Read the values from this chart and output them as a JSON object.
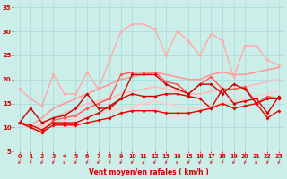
{
  "bg_color": "#cceee8",
  "grid_color": "#aadddd",
  "xlabel": "Vent moyen/en rafales ( km/h )",
  "xlabel_color": "#cc0000",
  "tick_color": "#cc0000",
  "xlim": [
    -0.5,
    23.5
  ],
  "ylim": [
    5,
    36
  ],
  "xticks": [
    0,
    1,
    2,
    3,
    4,
    5,
    6,
    7,
    8,
    9,
    10,
    11,
    12,
    13,
    14,
    15,
    16,
    17,
    18,
    19,
    20,
    21,
    22,
    23
  ],
  "yticks": [
    5,
    10,
    15,
    20,
    25,
    30,
    35
  ],
  "series": [
    {
      "x": [
        0,
        1,
        2,
        3,
        4,
        5,
        6,
        7,
        8,
        9,
        10,
        11,
        12,
        13,
        14,
        15,
        16,
        17,
        18,
        19,
        20,
        21,
        22,
        23
      ],
      "y": [
        18,
        16,
        14.5,
        21,
        17,
        17,
        21.5,
        18,
        24,
        30,
        31.5,
        31.5,
        30.5,
        25,
        30,
        28,
        25,
        29.5,
        28,
        20.5,
        27,
        27,
        24,
        23
      ],
      "color": "#ffaaaa",
      "lw": 1.0,
      "marker": "D",
      "ms": 2.0,
      "zorder": 2
    },
    {
      "x": [
        0,
        1,
        2,
        3,
        4,
        5,
        6,
        7,
        8,
        9,
        10,
        11,
        12,
        13,
        14,
        15,
        16,
        17,
        18,
        19,
        20,
        21,
        22,
        23
      ],
      "y": [
        11,
        10.5,
        12,
        14,
        15,
        16,
        17,
        18,
        19,
        20,
        20.5,
        21,
        21.5,
        21,
        20.5,
        20,
        20,
        21,
        21.5,
        21,
        21,
        21.5,
        22,
        22.5
      ],
      "color": "#ff9999",
      "lw": 1.2,
      "marker": null,
      "ms": 0,
      "zorder": 2
    },
    {
      "x": [
        0,
        1,
        2,
        3,
        4,
        5,
        6,
        7,
        8,
        9,
        10,
        11,
        12,
        13,
        14,
        15,
        16,
        17,
        18,
        19,
        20,
        21,
        22,
        23
      ],
      "y": [
        11,
        10,
        10.5,
        12,
        13,
        14,
        15,
        15.5,
        16,
        17,
        17.5,
        18,
        18.5,
        18,
        17.5,
        17,
        17,
        17.5,
        18,
        18,
        18.5,
        19,
        19.5,
        20
      ],
      "color": "#ffbbbb",
      "lw": 1.2,
      "marker": null,
      "ms": 0,
      "zorder": 2
    },
    {
      "x": [
        0,
        1,
        2,
        3,
        4,
        5,
        6,
        7,
        8,
        9,
        10,
        11,
        12,
        13,
        14,
        15,
        16,
        17,
        18,
        19,
        20,
        21,
        22,
        23
      ],
      "y": [
        11,
        10,
        10,
        11,
        11.5,
        12,
        12.5,
        13,
        13.5,
        14,
        14.5,
        15,
        15.5,
        15,
        14.5,
        14,
        14,
        14.5,
        15,
        15.5,
        16,
        16.5,
        17,
        17.5
      ],
      "color": "#ffcccc",
      "lw": 1.2,
      "marker": null,
      "ms": 0,
      "zorder": 2
    },
    {
      "x": [
        0,
        1,
        2,
        3,
        4,
        5,
        6,
        7,
        8,
        9,
        10,
        11,
        12,
        13,
        14,
        15,
        16,
        17,
        18,
        19,
        20,
        21,
        22,
        23
      ],
      "y": [
        11,
        10,
        9,
        11.5,
        12,
        12.5,
        14,
        15,
        16,
        21,
        21.5,
        21.5,
        21.5,
        19.5,
        19,
        17,
        19,
        20.5,
        18,
        18,
        18.5,
        15,
        16.5,
        16
      ],
      "color": "#ff5555",
      "lw": 1.0,
      "marker": "D",
      "ms": 2.0,
      "zorder": 3
    },
    {
      "x": [
        0,
        1,
        2,
        3,
        4,
        5,
        6,
        7,
        8,
        9,
        10,
        11,
        12,
        13,
        14,
        15,
        16,
        17,
        18,
        19,
        20,
        21,
        22,
        23
      ],
      "y": [
        11,
        14,
        11,
        12,
        12.5,
        14,
        17,
        14,
        14,
        16,
        21,
        21,
        21,
        19,
        18,
        17,
        19,
        19,
        17,
        19,
        18,
        15,
        16,
        16
      ],
      "color": "#cc0000",
      "lw": 1.0,
      "marker": "D",
      "ms": 2.0,
      "zorder": 3
    },
    {
      "x": [
        0,
        1,
        2,
        3,
        4,
        5,
        6,
        7,
        8,
        9,
        10,
        11,
        12,
        13,
        14,
        15,
        16,
        17,
        18,
        19,
        20,
        21,
        22,
        23
      ],
      "y": [
        11,
        10.5,
        9.5,
        11,
        11,
        11,
        12,
        13,
        14.5,
        16,
        17,
        16.5,
        16.5,
        17,
        17,
        16.5,
        16,
        14,
        18,
        15,
        15.5,
        16,
        13,
        16.5
      ],
      "color": "#dd0000",
      "lw": 1.0,
      "marker": "D",
      "ms": 2.0,
      "zorder": 4
    },
    {
      "x": [
        0,
        1,
        2,
        3,
        4,
        5,
        6,
        7,
        8,
        9,
        10,
        11,
        12,
        13,
        14,
        15,
        16,
        17,
        18,
        19,
        20,
        21,
        22,
        23
      ],
      "y": [
        11,
        10,
        9,
        10.5,
        10.5,
        10.5,
        11,
        11.5,
        12,
        13,
        13.5,
        13.5,
        13.5,
        13,
        13,
        13,
        13.5,
        14,
        15,
        14,
        14.5,
        15,
        12,
        13.5
      ],
      "color": "#ee0000",
      "lw": 1.0,
      "marker": "D",
      "ms": 2.0,
      "zorder": 4
    }
  ],
  "arrow_color": "#cc3333"
}
